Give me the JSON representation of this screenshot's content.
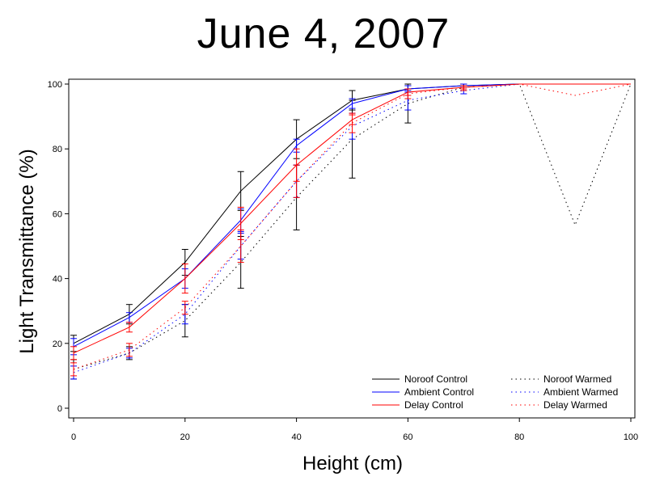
{
  "chart_data": {
    "type": "line",
    "title": "June 4, 2007",
    "xlabel": "Height (cm)",
    "ylabel": "Light Transmittance (%)",
    "xlim": [
      0,
      100
    ],
    "ylim": [
      0,
      100
    ],
    "xticks": [
      0,
      20,
      40,
      60,
      80,
      100
    ],
    "yticks": [
      0,
      20,
      40,
      60,
      80,
      100
    ],
    "grid": false,
    "legend_position": "bottom-right",
    "series": [
      {
        "name": "Noroof Control",
        "color": "#000000",
        "style": "solid",
        "x": [
          0,
          10,
          20,
          30,
          40,
          50,
          60,
          70,
          80,
          90,
          100
        ],
        "y": [
          20,
          29,
          45,
          67,
          83,
          95,
          98.5,
          99.5,
          100,
          100,
          100
        ],
        "err": [
          2.5,
          3,
          4,
          6,
          6,
          3,
          1,
          0.5,
          0,
          0,
          0
        ]
      },
      {
        "name": "Ambient Control",
        "color": "#0000ff",
        "style": "solid",
        "x": [
          0,
          10,
          20,
          30,
          40,
          50,
          60,
          70,
          80,
          90,
          100
        ],
        "y": [
          19,
          28,
          40,
          58,
          81,
          94,
          98.5,
          99.5,
          100,
          100,
          100
        ],
        "err": [
          2.5,
          1.5,
          3,
          3.5,
          2,
          1.5,
          1,
          0.5,
          0,
          0,
          0
        ]
      },
      {
        "name": "Delay Control",
        "color": "#ff0000",
        "style": "solid",
        "x": [
          0,
          10,
          20,
          30,
          40,
          50,
          60,
          70,
          80,
          90,
          100
        ],
        "y": [
          17,
          25,
          40,
          57,
          75,
          89,
          97.5,
          99,
          100,
          100,
          100
        ],
        "err": [
          2,
          1.5,
          4.5,
          5,
          5,
          1.5,
          1,
          0.5,
          0,
          0,
          0
        ]
      },
      {
        "name": "Noroof Warmed",
        "color": "#000000",
        "style": "dotted",
        "x": [
          0,
          10,
          20,
          30,
          40,
          50,
          60,
          70,
          80,
          90,
          100
        ],
        "y": [
          12,
          17,
          27,
          45,
          65,
          83,
          94,
          99,
          100,
          56.5,
          100
        ],
        "err": [
          3,
          2,
          5,
          8,
          10,
          12,
          6,
          1,
          0,
          0,
          0
        ]
      },
      {
        "name": "Ambient Warmed",
        "color": "#0000ff",
        "style": "dotted",
        "x": [
          0,
          10,
          20,
          30,
          40,
          50,
          60,
          70,
          80,
          90,
          100
        ],
        "y": [
          11,
          17,
          29,
          50,
          70,
          87,
          95,
          98,
          100,
          100,
          100
        ],
        "err": [
          2,
          1.5,
          3,
          4,
          5,
          4,
          3,
          1,
          0,
          0,
          0
        ]
      },
      {
        "name": "Delay Warmed",
        "color": "#ff0000",
        "style": "dotted",
        "x": [
          0,
          10,
          20,
          30,
          40,
          50,
          60,
          70,
          80,
          90,
          100
        ],
        "y": [
          12,
          18,
          31,
          50,
          70,
          88,
          97,
          99,
          100,
          96.5,
          100
        ],
        "err": [
          2,
          2,
          2,
          5,
          5,
          3,
          1.5,
          1,
          0,
          0,
          0
        ]
      }
    ]
  }
}
